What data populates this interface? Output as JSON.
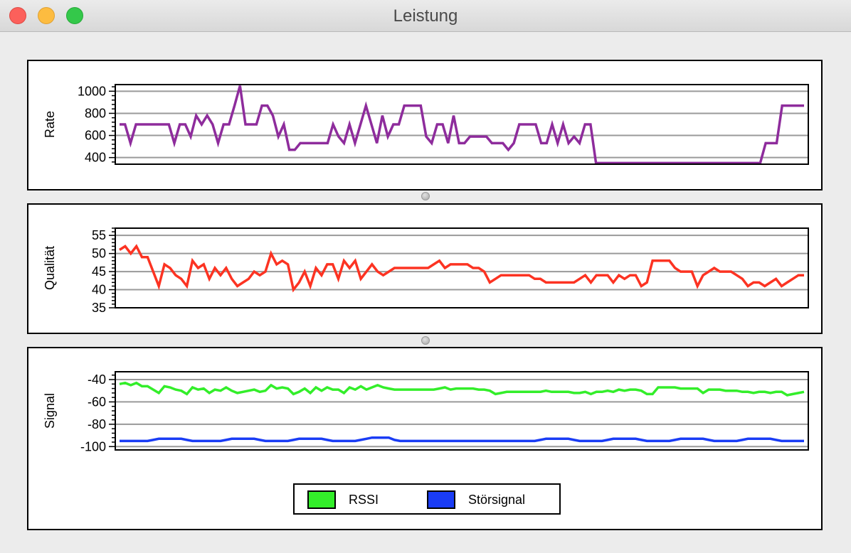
{
  "window": {
    "title": "Leistung"
  },
  "colors": {
    "rate": "#8e2c9c",
    "quality": "#fc3322",
    "rssi": "#33ee2a",
    "interference": "#1a3cf5"
  },
  "chart_data": [
    {
      "type": "line",
      "ylabel": "Rate",
      "ylim": [
        340,
        1060
      ],
      "yticks": [
        400,
        600,
        800,
        1000
      ],
      "grid": true,
      "series": [
        {
          "values": [
            700,
            700,
            530,
            700,
            700,
            700,
            700,
            700,
            700,
            700,
            530,
            700,
            700,
            590,
            780,
            700,
            780,
            700,
            530,
            700,
            700,
            870,
            1050,
            700,
            700,
            700,
            870,
            870,
            780,
            590,
            700,
            470,
            470,
            530,
            530,
            530,
            530,
            530,
            530,
            700,
            590,
            530,
            700,
            530,
            700,
            870,
            700,
            530,
            780,
            590,
            700,
            700,
            870,
            870,
            870,
            870,
            590,
            530,
            700,
            700,
            530,
            780,
            530,
            530,
            590,
            590,
            590,
            590,
            530,
            530,
            530,
            470,
            530,
            700,
            700,
            700,
            700,
            530,
            530,
            700,
            530,
            700,
            530,
            590,
            530,
            700,
            700,
            350,
            350,
            350,
            350,
            350,
            350,
            350,
            350,
            350,
            350,
            350,
            350,
            350,
            350,
            350,
            350,
            350,
            350,
            350,
            350,
            350,
            350,
            350,
            350,
            350,
            350,
            350,
            350,
            350,
            350,
            350,
            530,
            530,
            530,
            870,
            870,
            870,
            870,
            870
          ]
        }
      ]
    },
    {
      "type": "line",
      "ylabel": "Qualität",
      "ylim": [
        35,
        57
      ],
      "yticks": [
        35,
        40,
        45,
        50,
        55
      ],
      "grid": true,
      "series": [
        {
          "values": [
            51,
            52,
            50,
            52,
            49,
            49,
            45,
            41,
            47,
            46,
            44,
            43,
            41,
            48,
            46,
            47,
            43,
            46,
            44,
            46,
            43,
            41,
            42,
            43,
            45,
            44,
            45,
            50,
            47,
            48,
            47,
            40,
            42,
            45,
            41,
            46,
            44,
            47,
            47,
            43,
            48,
            46,
            48,
            43,
            45,
            47,
            45,
            44,
            45,
            46,
            46,
            46,
            46,
            46,
            46,
            46,
            47,
            48,
            46,
            47,
            47,
            47,
            47,
            46,
            46,
            45,
            42,
            43,
            44,
            44,
            44,
            44,
            44,
            44,
            43,
            43,
            42,
            42,
            42,
            42,
            42,
            42,
            43,
            44,
            42,
            44,
            44,
            44,
            42,
            44,
            43,
            44,
            44,
            41,
            42,
            48,
            48,
            48,
            48,
            46,
            45,
            45,
            45,
            41,
            44,
            45,
            46,
            45,
            45,
            45,
            44,
            43,
            41,
            42,
            42,
            41,
            42,
            43,
            41,
            42,
            43,
            44,
            44
          ]
        }
      ]
    },
    {
      "type": "line",
      "ylabel": "Signal",
      "ylim": [
        -103,
        -33
      ],
      "yticks": [
        -100,
        -80,
        -60,
        -40
      ],
      "grid": true,
      "legend": "bottom-center",
      "series": [
        {
          "name": "RSSI",
          "values": [
            -44,
            -43,
            -45,
            -43,
            -46,
            -46,
            -49,
            -52,
            -46,
            -47,
            -49,
            -50,
            -53,
            -47,
            -49,
            -48,
            -52,
            -49,
            -50,
            -47,
            -50,
            -52,
            -51,
            -50,
            -49,
            -51,
            -50,
            -45,
            -48,
            -47,
            -48,
            -53,
            -51,
            -48,
            -52,
            -47,
            -50,
            -47,
            -49,
            -49,
            -52,
            -47,
            -49,
            -46,
            -49,
            -47,
            -45,
            -47,
            -48,
            -49,
            -49,
            -49,
            -49,
            -49,
            -49,
            -49,
            -49,
            -48,
            -47,
            -49,
            -48,
            -48,
            -48,
            -48,
            -49,
            -49,
            -50,
            -53,
            -52,
            -51,
            -51,
            -51,
            -51,
            -51,
            -51,
            -51,
            -50,
            -51,
            -51,
            -51,
            -51,
            -52,
            -52,
            -51,
            -53,
            -51,
            -51,
            -50,
            -51,
            -49,
            -50,
            -49,
            -49,
            -50,
            -53,
            -53,
            -47,
            -47,
            -47,
            -47,
            -48,
            -48,
            -48,
            -48,
            -52,
            -49,
            -49,
            -49,
            -50,
            -50,
            -50,
            -51,
            -51,
            -52,
            -51,
            -51,
            -52,
            -51,
            -51,
            -54,
            -53,
            -52,
            -51
          ]
        },
        {
          "name": "Störsignal",
          "values": [
            -95,
            -95,
            -95,
            -95,
            -95,
            -95,
            -94,
            -93,
            -93,
            -93,
            -93,
            -93,
            -94,
            -95,
            -95,
            -95,
            -95,
            -95,
            -95,
            -94,
            -93,
            -93,
            -93,
            -93,
            -93,
            -94,
            -95,
            -95,
            -95,
            -95,
            -95,
            -94,
            -93,
            -93,
            -93,
            -93,
            -93,
            -94,
            -95,
            -95,
            -95,
            -95,
            -95,
            -94,
            -93,
            -92,
            -92,
            -92,
            -92,
            -94,
            -95,
            -95,
            -95,
            -95,
            -95,
            -95,
            -95,
            -95,
            -95,
            -95,
            -95,
            -95,
            -95,
            -95,
            -95,
            -95,
            -95,
            -95,
            -95,
            -95,
            -95,
            -95,
            -95,
            -95,
            -95,
            -94,
            -93,
            -93,
            -93,
            -93,
            -93,
            -94,
            -95,
            -95,
            -95,
            -95,
            -95,
            -94,
            -93,
            -93,
            -93,
            -93,
            -93,
            -94,
            -95,
            -95,
            -95,
            -95,
            -95,
            -94,
            -93,
            -93,
            -93,
            -93,
            -93,
            -94,
            -95,
            -95,
            -95,
            -95,
            -95,
            -94,
            -93,
            -93,
            -93,
            -93,
            -93,
            -94,
            -95,
            -95,
            -95,
            -95,
            -95
          ]
        }
      ]
    }
  ]
}
